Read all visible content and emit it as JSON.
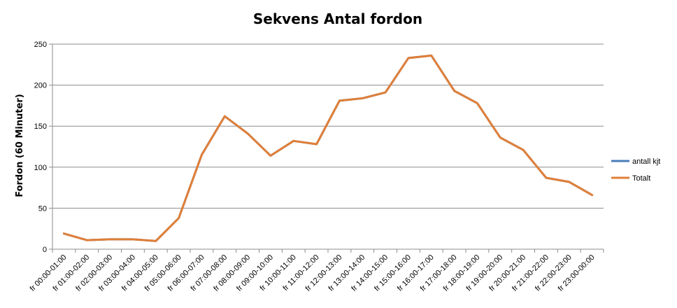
{
  "chart_data": {
    "type": "line",
    "title": "Sekvens Antal fordon",
    "ylabel": "Fordon (60 Minuter)",
    "xlabel": "",
    "ylim": [
      0,
      250
    ],
    "yticks": [
      0,
      50,
      100,
      150,
      200,
      250
    ],
    "grid": true,
    "legend_position": "right",
    "categories": [
      "fr 00:00-01:00",
      "fr 01:00-02:00",
      "fr 02:00-03:00",
      "fr 03:00-04:00",
      "fr 04:00-05:00",
      "fr 05:00-06:00",
      "fr 06:00-07:00",
      "fr 07:00-08:00",
      "fr 08:00-09:00",
      "fr 09:00-10:00",
      "fr 10:00-11:00",
      "fr 11:00-12:00",
      "fr 12:00-13:00",
      "fr 13:00-14:00",
      "fr 14:00-15:00",
      "fr 15:00-16:00",
      "fr 16:00-17:00",
      "fr 17:00-18:00",
      "fr 18:00-19:00",
      "fr 19:00-20:00",
      "fr 20:00-21:00",
      "fr 21:00-22:00",
      "fr 22:00-23:00",
      "fr 23:00-00:00"
    ],
    "series": [
      {
        "name": "antall kjt",
        "color": "#4a7ebb",
        "values": [
          19,
          11,
          12,
          12,
          10,
          38,
          115,
          162,
          141,
          114,
          132,
          128,
          181,
          184,
          191,
          233,
          236,
          193,
          178,
          136,
          121,
          87,
          82,
          66
        ]
      },
      {
        "name": "Totalt",
        "color": "#e07f38",
        "values": [
          19,
          11,
          12,
          12,
          10,
          38,
          115,
          162,
          141,
          114,
          132,
          128,
          181,
          184,
          191,
          233,
          236,
          193,
          178,
          136,
          121,
          87,
          82,
          66
        ]
      }
    ]
  }
}
